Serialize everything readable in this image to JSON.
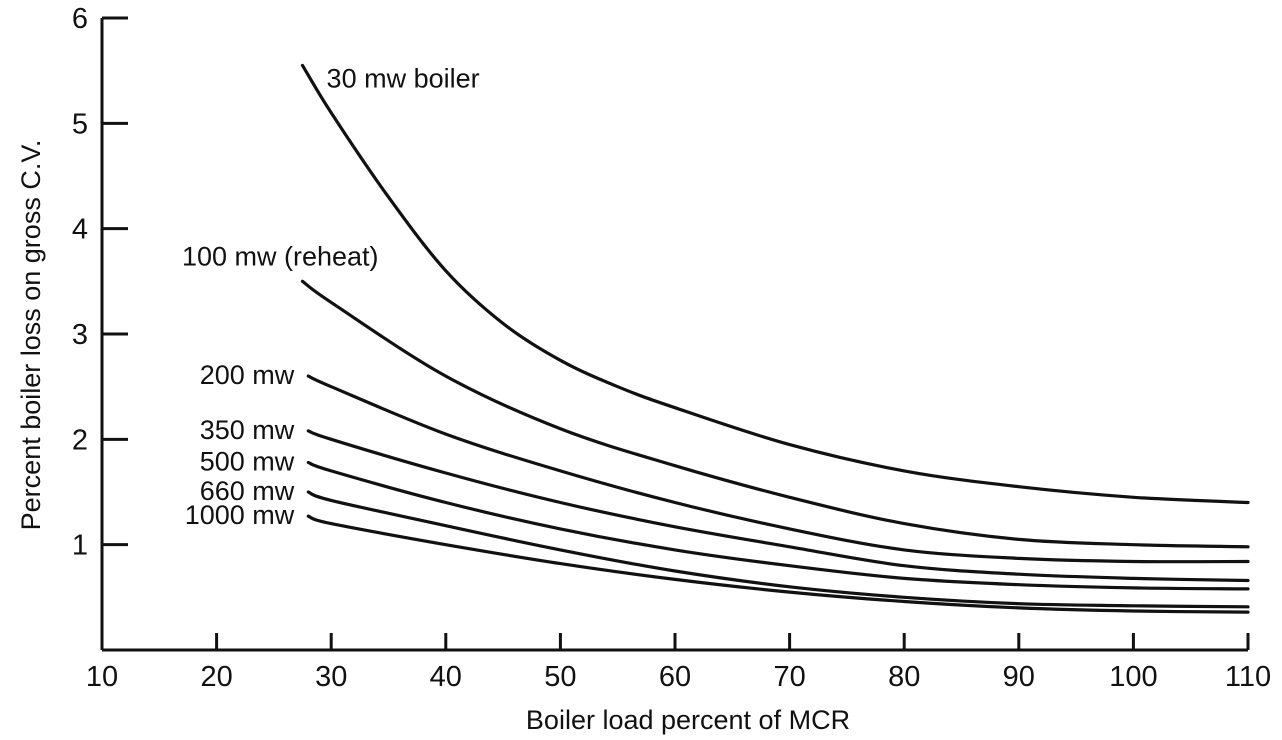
{
  "chart_data": {
    "type": "line",
    "title": "",
    "xlabel": "Boiler load percent of MCR",
    "ylabel": "Percent boiler loss on gross C.V.",
    "xlim": [
      10,
      110
    ],
    "ylim": [
      0,
      6
    ],
    "x_ticks": [
      10,
      20,
      30,
      40,
      50,
      60,
      70,
      80,
      90,
      100,
      110
    ],
    "x_tick_labels": [
      "10",
      "20",
      "30",
      "40",
      "50",
      "60",
      "70",
      "80",
      "90",
      "100",
      "110"
    ],
    "y_ticks": [
      1,
      2,
      3,
      4,
      5,
      6
    ],
    "y_tick_labels": [
      "1",
      "2",
      "3",
      "4",
      "5",
      "6"
    ],
    "grid": false,
    "legend": "labels placed beside line starts",
    "series": [
      {
        "name": "30 mw boiler",
        "x": [
          27.5,
          30,
          35,
          40,
          45,
          50,
          55,
          60,
          70,
          80,
          90,
          100,
          110
        ],
        "y": [
          5.55,
          5.1,
          4.3,
          3.6,
          3.1,
          2.75,
          2.5,
          2.3,
          1.95,
          1.7,
          1.55,
          1.45,
          1.4
        ]
      },
      {
        "name": "100 mw (reheat)",
        "x": [
          27.5,
          30,
          40,
          50,
          60,
          70,
          80,
          90,
          100,
          110
        ],
        "y": [
          3.5,
          3.3,
          2.6,
          2.1,
          1.75,
          1.45,
          1.2,
          1.05,
          1.0,
          0.98
        ]
      },
      {
        "name": "200 mw",
        "x": [
          28,
          30,
          40,
          50,
          60,
          70,
          80,
          90,
          100,
          110
        ],
        "y": [
          2.6,
          2.5,
          2.05,
          1.7,
          1.4,
          1.15,
          0.95,
          0.87,
          0.84,
          0.84
        ]
      },
      {
        "name": "350 mw",
        "x": [
          28,
          30,
          40,
          50,
          60,
          70,
          80,
          90,
          100,
          110
        ],
        "y": [
          2.08,
          2.0,
          1.68,
          1.4,
          1.17,
          0.98,
          0.8,
          0.72,
          0.68,
          0.66
        ]
      },
      {
        "name": "500 mw",
        "x": [
          28,
          30,
          40,
          50,
          60,
          70,
          80,
          90,
          100,
          110
        ],
        "y": [
          1.78,
          1.7,
          1.4,
          1.15,
          0.95,
          0.8,
          0.68,
          0.62,
          0.59,
          0.58
        ]
      },
      {
        "name": "660 mw",
        "x": [
          28,
          30,
          40,
          50,
          60,
          70,
          80,
          90,
          100,
          110
        ],
        "y": [
          1.5,
          1.42,
          1.18,
          0.95,
          0.75,
          0.6,
          0.5,
          0.44,
          0.42,
          0.41
        ]
      },
      {
        "name": "1000 mw",
        "x": [
          28,
          30,
          40,
          50,
          60,
          70,
          80,
          90,
          100,
          110
        ],
        "y": [
          1.27,
          1.2,
          1.0,
          0.82,
          0.67,
          0.55,
          0.46,
          0.4,
          0.37,
          0.36
        ]
      }
    ]
  }
}
